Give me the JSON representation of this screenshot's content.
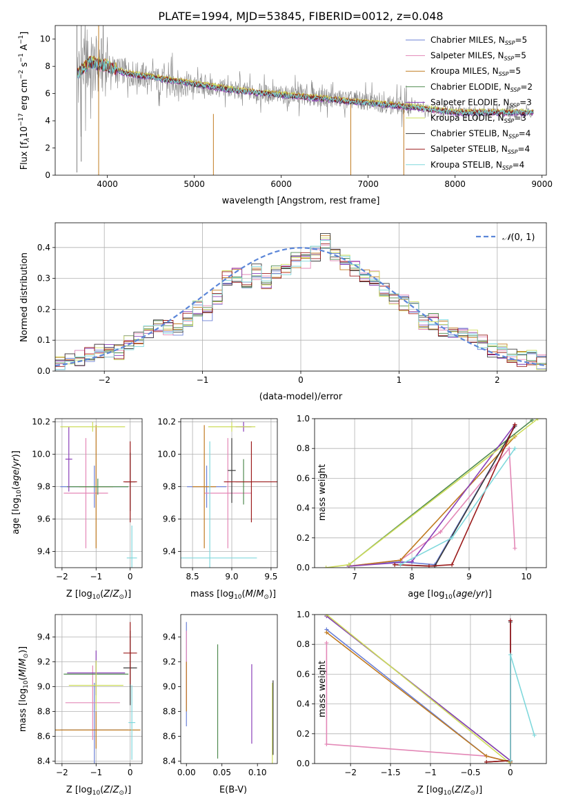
{
  "figure_title": "PLATE=1994, MJD=53845, FIBERID=0012, z=0.048",
  "series_names": [
    "Chabrier MILES, N_SSP=5",
    "Salpeter MILES, N_SSP=5",
    "Kroupa MILES, N_SSP=5",
    "Chabrier ELODIE, N_SSP=2",
    "Salpeter ELODIE, N_SSP=3",
    "Kroupa ELODIE, N_SSP=3",
    "Chabrier STELIB, N_SSP=4",
    "Salpeter STELIB, N_SSP=4",
    "Kroupa STELIB, N_SSP=4"
  ],
  "legend": [
    {
      "pre": "Chabrier MILES, N",
      "sub": "SSP",
      "post": "=5"
    },
    {
      "pre": "Salpeter MILES, N",
      "sub": "SSP",
      "post": "=5"
    },
    {
      "pre": "Kroupa MILES, N",
      "sub": "SSP",
      "post": "=5"
    },
    {
      "pre": "Chabrier ELODIE, N",
      "sub": "SSP",
      "post": "=2"
    },
    {
      "pre": "Salpeter ELODIE, N",
      "sub": "SSP",
      "post": "=3"
    },
    {
      "pre": "Kroupa ELODIE, N",
      "sub": "SSP",
      "post": "=3"
    },
    {
      "pre": "Chabrier STELIB, N",
      "sub": "SSP",
      "post": "=4"
    },
    {
      "pre": "Salpeter STELIB, N",
      "sub": "SSP",
      "post": "=4"
    },
    {
      "pre": "Kroupa STELIB, N",
      "sub": "SSP",
      "post": "=4"
    }
  ],
  "series_colors": [
    "#6a7fd6",
    "#e387b6",
    "#c07a1f",
    "#4f8a4f",
    "#8a3fb8",
    "#cddc5a",
    "#3a3a3a",
    "#9b1b1b",
    "#7fd8dc"
  ],
  "labels": {
    "p1_x": "wavelength [Angstrom, rest frame]",
    "p1_y": "Flux [f_λ 10^-17 erg cm^-2 s^-1 A^-1]",
    "p2_x": "(data-model)/error",
    "p2_y": "Normed distribution",
    "p2_legend": "N(0, 1)",
    "p3_x": "Z [log10(Z/Z⊙)]",
    "p3_y": "age [log10(age/yr)]",
    "p4_x": "mass [log10(M/M⊙)]",
    "p5_x": "age [log10(age/yr)]",
    "p5_y": "mass weight",
    "p6_x": "Z [log10(Z/Z⊙)]",
    "p6_y": "mass [log10(M/M⊙)]",
    "p7_x": "E(B-V)",
    "p8_x": "Z [log10(Z/Z⊙)]",
    "p8_y": "mass weight"
  },
  "chart_data": [
    {
      "panel": "spectrum",
      "type": "line",
      "title": "PLATE=1994, MJD=53845, FIBERID=0012, z=0.048",
      "xlabel": "wavelength [Angstrom, rest frame]",
      "ylabel": "Flux [f_λ 10^-17 erg cm^-2 s^-1 A^-1]",
      "xlim": [
        3400,
        9050
      ],
      "ylim": [
        0,
        11
      ],
      "xticks": [
        4000,
        5000,
        6000,
        7000,
        8000,
        9000
      ],
      "yticks": [
        0,
        2,
        4,
        6,
        8,
        10
      ],
      "data": {
        "x": [
          3650,
          3800,
          4000,
          4200,
          4500,
          5000,
          5500,
          6000,
          6500,
          7000,
          7500,
          8000,
          8500,
          8900
        ],
        "y": [
          7.6,
          8.1,
          8.0,
          7.6,
          7.1,
          6.6,
          6.2,
          5.9,
          5.7,
          5.4,
          5.0,
          4.7,
          4.6,
          4.6
        ]
      },
      "models": {
        "x": [
          3650,
          3800,
          4000,
          4200,
          4500,
          5000,
          5500,
          6000,
          6500,
          7000,
          7500,
          8000,
          8500,
          8900
        ],
        "y": [
          7.4,
          8.3,
          8.0,
          7.5,
          7.2,
          6.7,
          6.2,
          5.9,
          5.6,
          5.3,
          5.0,
          4.6,
          4.6,
          4.6
        ]
      },
      "grid": false,
      "legend_position": "upper right"
    },
    {
      "panel": "residual-histogram",
      "type": "line",
      "xlabel": "(data-model)/error",
      "ylabel": "Normed distribution",
      "xlim": [
        -2.5,
        2.5
      ],
      "ylim": [
        0,
        0.48
      ],
      "xticks": [
        -2,
        -1,
        0,
        1,
        2
      ],
      "yticks": [
        0.0,
        0.1,
        0.2,
        0.3,
        0.4
      ],
      "grid": true,
      "legend": "N(0,1)",
      "legend_position": "upper right",
      "reference_curve": "gaussian mean 0 sigma 1",
      "bins": {
        "edges": [
          -2.5,
          -2.4,
          -2.3,
          -2.2,
          -2.1,
          -2.0,
          -1.9,
          -1.8,
          -1.7,
          -1.6,
          -1.5,
          -1.4,
          -1.3,
          -1.2,
          -1.1,
          -1.0,
          -0.9,
          -0.8,
          -0.7,
          -0.6,
          -0.5,
          -0.4,
          -0.3,
          -0.2,
          -0.1,
          0.0,
          0.1,
          0.2,
          0.3,
          0.4,
          0.5,
          0.6,
          0.7,
          0.8,
          0.9,
          1.0,
          1.1,
          1.2,
          1.3,
          1.4,
          1.5,
          1.6,
          1.7,
          1.8,
          1.9,
          2.0,
          2.1,
          2.2,
          2.3,
          2.4,
          2.5
        ],
        "heights": [
          0.02,
          0.04,
          0.04,
          0.05,
          0.06,
          0.06,
          0.06,
          0.09,
          0.1,
          0.12,
          0.15,
          0.14,
          0.14,
          0.17,
          0.2,
          0.19,
          0.24,
          0.3,
          0.31,
          0.29,
          0.32,
          0.29,
          0.32,
          0.33,
          0.36,
          0.36,
          0.38,
          0.42,
          0.38,
          0.35,
          0.33,
          0.31,
          0.3,
          0.26,
          0.24,
          0.22,
          0.2,
          0.16,
          0.16,
          0.14,
          0.13,
          0.12,
          0.11,
          0.09,
          0.07,
          0.06,
          0.05,
          0.04,
          0.04,
          0.03
        ]
      }
    },
    {
      "panel": "age-vs-Z",
      "type": "scatter",
      "xlabel": "Z [log10(Z/Z⊙)]",
      "ylabel": "age [log10(age/yr)]",
      "xlim": [
        -2.2,
        0.35
      ],
      "ylim": [
        9.3,
        10.22
      ],
      "xticks": [
        -2,
        -1,
        0
      ],
      "yticks": [
        9.4,
        9.6,
        9.8,
        10.0,
        10.2
      ],
      "grid": true,
      "points": [
        {
          "x": -1.05,
          "y": 9.8,
          "xerr": 1.0,
          "yerr": 0.13
        },
        {
          "x": -1.3,
          "y": 9.76,
          "xerr": 0.65,
          "yerr": 0.34
        },
        {
          "x": -1.0,
          "y": 9.8,
          "xerr": 0.5,
          "yerr": 0.38
        },
        {
          "x": -0.95,
          "y": 9.8,
          "xerr": 0.9,
          "yerr": 0.05
        },
        {
          "x": -1.8,
          "y": 9.97,
          "xerr": 0.1,
          "yerr": 0.2
        },
        {
          "x": -1.1,
          "y": 10.17,
          "xerr": 0.95,
          "yerr": 0.03
        },
        {
          "x": 0.0,
          "y": 9.83,
          "xerr": 0.15,
          "yerr": 0.18
        },
        {
          "x": 0.0,
          "y": 9.83,
          "xerr": 0.2,
          "yerr": 0.25
        },
        {
          "x": 0.05,
          "y": 9.36,
          "xerr": 0.15,
          "yerr": 0.2
        }
      ]
    },
    {
      "panel": "age-vs-mass",
      "type": "scatter",
      "xlabel": "mass [log10(M/M⊙)]",
      "xlim": [
        8.35,
        9.58
      ],
      "ylim": [
        9.3,
        10.22
      ],
      "xticks": [
        8.5,
        9.0,
        9.5
      ],
      "yticks": [
        9.4,
        9.6,
        9.8,
        10.0,
        10.2
      ],
      "grid": true,
      "points": [
        {
          "x": 8.68,
          "y": 9.8,
          "xerr": 0.25,
          "yerr": 0.13
        },
        {
          "x": 8.95,
          "y": 9.76,
          "xerr": 0.3,
          "yerr": 0.34
        },
        {
          "x": 8.65,
          "y": 9.8,
          "xerr": 0.15,
          "yerr": 0.38
        },
        {
          "x": 9.15,
          "y": 9.83,
          "xerr": 0.1,
          "yerr": 0.14
        },
        {
          "x": 9.15,
          "y": 10.17,
          "xerr": 0.1,
          "yerr": 0.03
        },
        {
          "x": 9.0,
          "y": 10.17,
          "xerr": 0.3,
          "yerr": 0.03
        },
        {
          "x": 9.0,
          "y": 9.9,
          "xerr": 0.05,
          "yerr": 0.2
        },
        {
          "x": 9.25,
          "y": 9.83,
          "xerr": 0.35,
          "yerr": 0.25
        },
        {
          "x": 8.72,
          "y": 9.36,
          "xerr": 0.6,
          "yerr": 0.72
        }
      ]
    },
    {
      "panel": "mass-weight-vs-age",
      "type": "line",
      "xlabel": "age [log10(age/yr)]",
      "ylabel": "mass weight",
      "xlim": [
        6.3,
        10.35
      ],
      "ylim": [
        0,
        1.0
      ],
      "xticks": [
        7,
        8,
        9,
        10
      ],
      "yticks": [
        0.0,
        0.2,
        0.4,
        0.6,
        0.8,
        1.0
      ],
      "grid": true,
      "series": [
        {
          "name": "Chabrier MILES, N_SSP=5",
          "x": [
            6.9,
            7.8,
            8.4,
            9.8
          ],
          "y": [
            0.01,
            0.04,
            0.02,
            0.95
          ]
        },
        {
          "name": "Salpeter MILES, N_SSP=5",
          "x": [
            6.9,
            7.8,
            8.5,
            9.7,
            9.8
          ],
          "y": [
            0.01,
            0.05,
            0.24,
            0.8,
            0.13
          ]
        },
        {
          "name": "Kroupa MILES, N_SSP=5",
          "x": [
            6.9,
            7.8,
            9.8
          ],
          "y": [
            0.01,
            0.05,
            0.88
          ]
        },
        {
          "name": "Chabrier ELODIE, N_SSP=2",
          "x": [
            6.9,
            10.1
          ],
          "y": [
            0.02,
            0.99
          ]
        },
        {
          "name": "Salpeter ELODIE, N_SSP=3",
          "x": [
            6.9,
            8.0,
            9.8
          ],
          "y": [
            0.01,
            0.04,
            0.96
          ]
        },
        {
          "name": "Kroupa ELODIE, N_SSP=3",
          "x": [
            6.5,
            6.9,
            10.2
          ],
          "y": [
            0.0,
            0.02,
            1.0
          ]
        },
        {
          "name": "Chabrier STELIB, N_SSP=4",
          "x": [
            7.7,
            8.4,
            9.8
          ],
          "y": [
            0.02,
            0.01,
            0.95
          ]
        },
        {
          "name": "Salpeter STELIB, N_SSP=4",
          "x": [
            7.7,
            8.3,
            8.7,
            9.8
          ],
          "y": [
            0.02,
            0.01,
            0.02,
            0.96
          ]
        },
        {
          "name": "Kroupa STELIB, N_SSP=4",
          "x": [
            7.8,
            8.7,
            9.8
          ],
          "y": [
            0.02,
            0.2,
            0.8
          ]
        }
      ]
    },
    {
      "panel": "mass-vs-Z",
      "type": "scatter",
      "xlabel": "Z [log10(Z/Z⊙)]",
      "ylabel": "mass [log10(M/M⊙)]",
      "xlim": [
        -2.2,
        0.35
      ],
      "ylim": [
        8.38,
        9.58
      ],
      "xticks": [
        -2,
        -1,
        0
      ],
      "yticks": [
        8.4,
        8.6,
        8.8,
        9.0,
        9.2,
        9.4
      ],
      "grid": true,
      "points": [
        {
          "x": -1.05,
          "y": 8.65,
          "xerr": 1.0,
          "yerr": 0.38
        },
        {
          "x": -1.1,
          "y": 8.87,
          "xerr": 0.8,
          "yerr": 0.3
        },
        {
          "x": -1.0,
          "y": 8.65,
          "xerr": 1.3,
          "yerr": 0.15
        },
        {
          "x": -1.0,
          "y": 9.1,
          "xerr": 0.95,
          "yerr": 0.1
        },
        {
          "x": -1.0,
          "y": 9.11,
          "xerr": 0.85,
          "yerr": 0.18
        },
        {
          "x": -1.0,
          "y": 9.01,
          "xerr": 0.8,
          "yerr": 0.2
        },
        {
          "x": 0.0,
          "y": 9.15,
          "xerr": 0.2,
          "yerr": 0.3
        },
        {
          "x": 0.0,
          "y": 9.27,
          "xerr": 0.2,
          "yerr": 0.25
        },
        {
          "x": 0.05,
          "y": 8.71,
          "xerr": 0.1,
          "yerr": 0.3
        }
      ]
    },
    {
      "panel": "mass-vs-EBV",
      "type": "scatter",
      "xlabel": "E(B-V)",
      "xlim": [
        -0.008,
        0.128
      ],
      "ylim": [
        8.38,
        9.58
      ],
      "xticks": [
        0.0,
        0.05,
        0.1
      ],
      "yticks": [
        8.4,
        8.6,
        8.8,
        9.0,
        9.2,
        9.4
      ],
      "grid": false,
      "points": [
        {
          "x": 0.0,
          "y": 9.1,
          "xerr": 0,
          "yerr": 0.42
        },
        {
          "x": 0.0,
          "y": 9.15,
          "xerr": 0,
          "yerr": 0.3
        },
        {
          "x": 0.0,
          "y": 9.0,
          "xerr": 0,
          "yerr": 0.2
        },
        {
          "x": 0.044,
          "y": 8.88,
          "xerr": 0,
          "yerr": 0.46
        },
        {
          "x": 0.092,
          "y": 8.86,
          "xerr": 0,
          "yerr": 0.32
        },
        {
          "x": 0.121,
          "y": 8.65,
          "xerr": 0,
          "yerr": 0.38
        },
        {
          "x": 0.122,
          "y": 8.75,
          "xerr": 0,
          "yerr": 0.3
        }
      ]
    },
    {
      "panel": "mass-weight-vs-Z",
      "type": "line",
      "xlabel": "Z [log10(Z/Z⊙)]",
      "ylabel": "mass weight",
      "xlim": [
        -2.45,
        0.45
      ],
      "ylim": [
        0,
        1.0
      ],
      "xticks": [
        -2.0,
        -1.5,
        -1.0,
        -0.5,
        0.0
      ],
      "yticks": [
        0.0,
        0.2,
        0.4,
        0.6,
        0.8,
        1.0
      ],
      "grid": true,
      "series": [
        {
          "name": "Chabrier MILES, N_SSP=5",
          "x": [
            -2.3,
            -0.3,
            0.0
          ],
          "y": [
            0.9,
            0.05,
            0.01
          ]
        },
        {
          "name": "Salpeter MILES, N_SSP=5",
          "x": [
            -2.3,
            -2.3,
            -0.3,
            0.0
          ],
          "y": [
            0.81,
            0.13,
            0.05,
            0.01
          ]
        },
        {
          "name": "Kroupa MILES, N_SSP=5",
          "x": [
            -2.3,
            -0.3,
            0.0
          ],
          "y": [
            0.88,
            0.05,
            0.01
          ]
        },
        {
          "name": "Chabrier ELODIE, N_SSP=2",
          "x": [
            -2.3,
            0.0
          ],
          "y": [
            0.99,
            0.02
          ]
        },
        {
          "name": "Salpeter ELODIE, N_SSP=3",
          "x": [
            -2.3,
            0.0,
            0.0
          ],
          "y": [
            0.99,
            0.02,
            0.96
          ]
        },
        {
          "name": "Kroupa ELODIE, N_SSP=3",
          "x": [
            -2.3,
            0.0
          ],
          "y": [
            1.0,
            0.0
          ]
        },
        {
          "name": "Chabrier STELIB, N_SSP=4",
          "x": [
            0.0,
            0.0,
            -0.3
          ],
          "y": [
            0.95,
            0.02,
            0.01
          ]
        },
        {
          "name": "Salpeter STELIB, N_SSP=4",
          "x": [
            0.0,
            0.0,
            -0.3
          ],
          "y": [
            0.96,
            0.02,
            0.01
          ]
        },
        {
          "name": "Kroupa STELIB, N_SSP=4",
          "x": [
            0.0,
            0.0,
            0.3
          ],
          "y": [
            0.02,
            0.73,
            0.19
          ]
        }
      ]
    }
  ]
}
